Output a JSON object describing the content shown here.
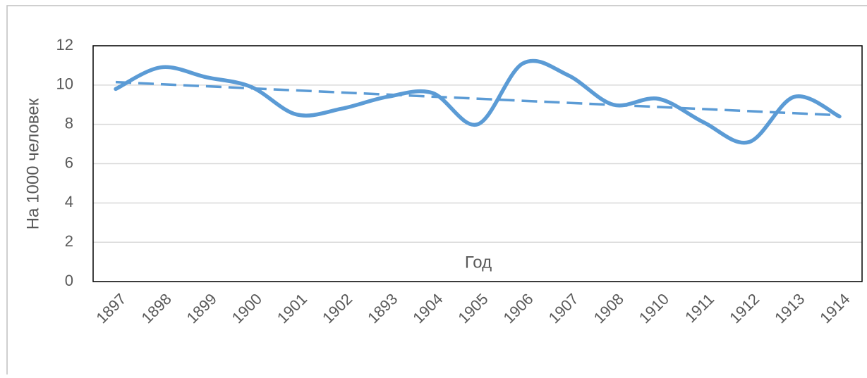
{
  "chart_data": {
    "type": "line",
    "xlabel": "Год",
    "ylabel": "На 1000 человек",
    "categories": [
      "1897",
      "1898",
      "1899",
      "1900",
      "1901",
      "1902",
      "1893",
      "1904",
      "1905",
      "1906",
      "1907",
      "1908",
      "1910",
      "1911",
      "1912",
      "1913",
      "1914"
    ],
    "series": [
      {
        "color": "#5b9bd5",
        "values": [
          9.8,
          10.9,
          10.4,
          9.9,
          8.5,
          8.8,
          9.4,
          9.6,
          8.0,
          11.1,
          10.5,
          9.0,
          9.3,
          8.1,
          7.1,
          9.4,
          8.4
        ]
      }
    ],
    "trendline": true,
    "smooth": true,
    "ylim": [
      0,
      12
    ],
    "yticks": [
      0,
      2,
      4,
      6,
      8,
      10,
      12
    ],
    "grid": true
  }
}
